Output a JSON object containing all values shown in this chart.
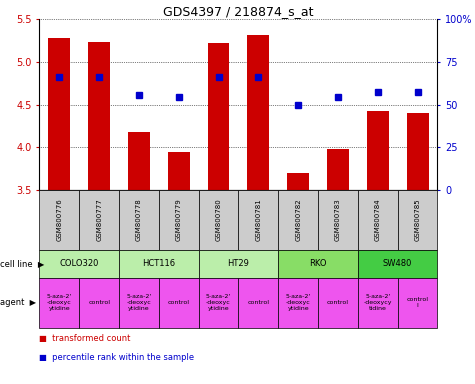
{
  "title": "GDS4397 / 218874_s_at",
  "samples": [
    "GSM800776",
    "GSM800777",
    "GSM800778",
    "GSM800779",
    "GSM800780",
    "GSM800781",
    "GSM800782",
    "GSM800783",
    "GSM800784",
    "GSM800785"
  ],
  "bar_values": [
    5.28,
    5.23,
    4.18,
    3.94,
    5.22,
    5.32,
    3.7,
    3.98,
    4.42,
    4.4
  ],
  "dot_values": [
    4.82,
    4.82,
    4.61,
    4.59,
    4.82,
    4.82,
    4.49,
    4.59,
    4.65,
    4.65
  ],
  "ylim_left": [
    3.5,
    5.5
  ],
  "ylim_right": [
    0,
    100
  ],
  "yticks_left": [
    3.5,
    4.0,
    4.5,
    5.0,
    5.5
  ],
  "yticks_right": [
    0,
    25,
    50,
    75,
    100
  ],
  "bar_color": "#cc0000",
  "dot_color": "#0000cc",
  "bar_width": 0.55,
  "ylabel_left_color": "#cc0000",
  "ylabel_right_color": "#0000cc",
  "sample_bg_color": "#cccccc",
  "cell_line_defs": [
    {
      "label": "COLO320",
      "start": 0,
      "end": 2,
      "color": "#bbeeaa"
    },
    {
      "label": "HCT116",
      "start": 2,
      "end": 4,
      "color": "#bbeeaa"
    },
    {
      "label": "HT29",
      "start": 4,
      "end": 6,
      "color": "#bbeeaa"
    },
    {
      "label": "RKO",
      "start": 6,
      "end": 8,
      "color": "#88dd66"
    },
    {
      "label": "SW480",
      "start": 8,
      "end": 10,
      "color": "#44cc44"
    }
  ],
  "agent_defs": [
    {
      "label": "5-aza-2'\n-deoxyc\nytidine",
      "start": 0,
      "end": 1,
      "color": "#ee55ee"
    },
    {
      "label": "control",
      "start": 1,
      "end": 2,
      "color": "#ee55ee"
    },
    {
      "label": "5-aza-2'\n-deoxyc\nytidine",
      "start": 2,
      "end": 3,
      "color": "#ee55ee"
    },
    {
      "label": "control",
      "start": 3,
      "end": 4,
      "color": "#ee55ee"
    },
    {
      "label": "5-aza-2'\n-deoxyc\nytidine",
      "start": 4,
      "end": 5,
      "color": "#ee55ee"
    },
    {
      "label": "control",
      "start": 5,
      "end": 6,
      "color": "#ee55ee"
    },
    {
      "label": "5-aza-2'\n-deoxyc\nytidine",
      "start": 6,
      "end": 7,
      "color": "#ee55ee"
    },
    {
      "label": "control",
      "start": 7,
      "end": 8,
      "color": "#ee55ee"
    },
    {
      "label": "5-aza-2'\n-deoxycy\ntidine",
      "start": 8,
      "end": 9,
      "color": "#ee55ee"
    },
    {
      "label": "control\nl",
      "start": 9,
      "end": 10,
      "color": "#ee55ee"
    }
  ]
}
